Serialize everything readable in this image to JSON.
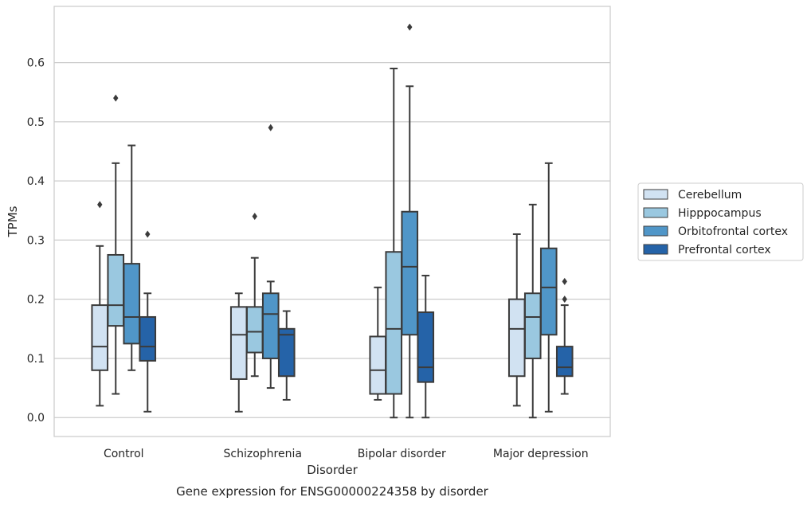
{
  "chart_data": {
    "type": "boxplot",
    "caption": "Gene expression for ENSG00000224358 by disorder",
    "xlabel": "Disorder",
    "ylabel": "TPMs",
    "ylim": [
      -0.032,
      0.695
    ],
    "yticks": [
      0.0,
      0.1,
      0.2,
      0.3,
      0.4,
      0.5,
      0.6
    ],
    "ytick_labels": [
      "0.0",
      "0.1",
      "0.2",
      "0.3",
      "0.4",
      "0.5",
      "0.6"
    ],
    "grid": "horizontal",
    "legend_position": "right",
    "categories": [
      "Control",
      "Schizophrenia",
      "Bipolar disorder",
      "Major depression"
    ],
    "series": [
      {
        "name": "Cerebellum",
        "color": "#d1e2f2",
        "boxes": [
          {
            "whislo": 0.02,
            "q1": 0.08,
            "med": 0.12,
            "q3": 0.19,
            "whishi": 0.29,
            "fliers": [
              0.36
            ]
          },
          {
            "whislo": 0.01,
            "q1": 0.065,
            "med": 0.14,
            "q3": 0.187,
            "whishi": 0.21,
            "fliers": []
          },
          {
            "whislo": 0.03,
            "q1": 0.04,
            "med": 0.08,
            "q3": 0.137,
            "whishi": 0.22,
            "fliers": []
          },
          {
            "whislo": 0.02,
            "q1": 0.07,
            "med": 0.15,
            "q3": 0.2,
            "whishi": 0.31,
            "fliers": []
          }
        ]
      },
      {
        "name": "Hipppocampus",
        "color": "#9ac8e0",
        "boxes": [
          {
            "whislo": 0.04,
            "q1": 0.155,
            "med": 0.19,
            "q3": 0.275,
            "whishi": 0.43,
            "fliers": [
              0.54
            ]
          },
          {
            "whislo": 0.07,
            "q1": 0.11,
            "med": 0.145,
            "q3": 0.187,
            "whishi": 0.27,
            "fliers": [
              0.34
            ]
          },
          {
            "whislo": 0.0,
            "q1": 0.04,
            "med": 0.15,
            "q3": 0.28,
            "whishi": 0.59,
            "fliers": []
          },
          {
            "whislo": 0.0,
            "q1": 0.1,
            "med": 0.17,
            "q3": 0.21,
            "whishi": 0.36,
            "fliers": []
          }
        ]
      },
      {
        "name": "Orbitofrontal cortex",
        "color": "#5096c8",
        "boxes": [
          {
            "whislo": 0.08,
            "q1": 0.125,
            "med": 0.17,
            "q3": 0.26,
            "whishi": 0.46,
            "fliers": []
          },
          {
            "whislo": 0.05,
            "q1": 0.1,
            "med": 0.175,
            "q3": 0.21,
            "whishi": 0.23,
            "fliers": [
              0.49
            ]
          },
          {
            "whislo": 0.0,
            "q1": 0.14,
            "med": 0.255,
            "q3": 0.348,
            "whishi": 0.56,
            "fliers": [
              0.66
            ]
          },
          {
            "whislo": 0.01,
            "q1": 0.14,
            "med": 0.22,
            "q3": 0.286,
            "whishi": 0.43,
            "fliers": []
          }
        ]
      },
      {
        "name": "Prefrontal cortex",
        "color": "#2563a8",
        "boxes": [
          {
            "whislo": 0.01,
            "q1": 0.096,
            "med": 0.12,
            "q3": 0.17,
            "whishi": 0.21,
            "fliers": [
              0.31
            ]
          },
          {
            "whislo": 0.03,
            "q1": 0.07,
            "med": 0.14,
            "q3": 0.15,
            "whishi": 0.18,
            "fliers": []
          },
          {
            "whislo": 0.0,
            "q1": 0.06,
            "med": 0.085,
            "q3": 0.178,
            "whishi": 0.24,
            "fliers": []
          },
          {
            "whislo": 0.04,
            "q1": 0.07,
            "med": 0.085,
            "q3": 0.12,
            "whishi": 0.19,
            "fliers": [
              0.2,
              0.23
            ]
          }
        ]
      }
    ]
  }
}
